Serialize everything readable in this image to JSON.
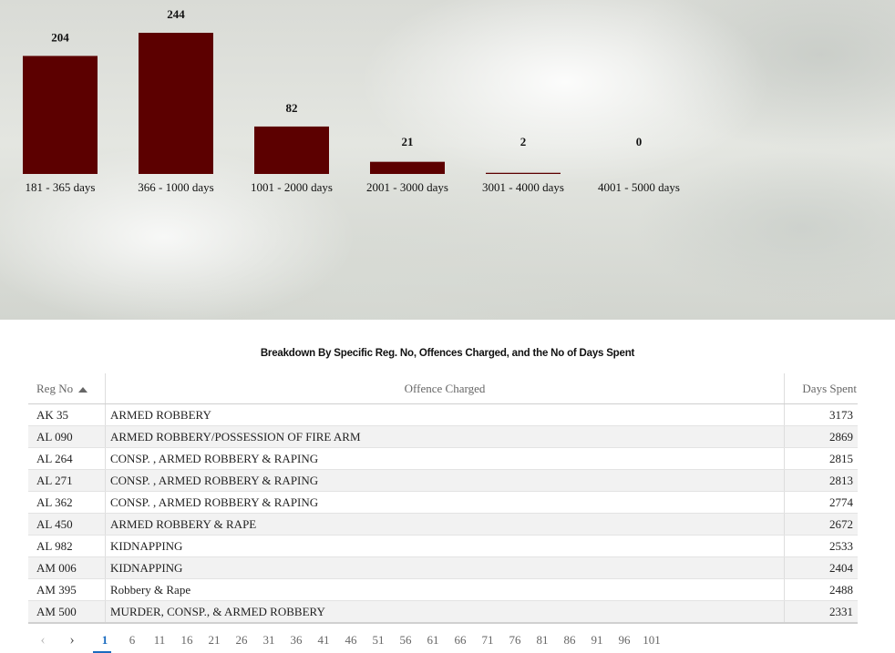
{
  "chart_data": {
    "type": "bar",
    "categories": [
      "181 - 365 days",
      "366 - 1000 days",
      "1001 - 2000 days",
      "2001 - 3000 days",
      "3001 - 4000 days",
      "4001 - 5000 days"
    ],
    "values": [
      204,
      244,
      82,
      21,
      2,
      0
    ],
    "title": "",
    "xlabel": "",
    "ylabel": "",
    "ylim": [
      0,
      244
    ],
    "grid": false,
    "bar_color": "#5c0000"
  },
  "table": {
    "title": "Breakdown By Specific Reg. No, Offences Charged, and the No of Days Spent",
    "headers": {
      "reg": "Reg No",
      "offence": "Offence Charged",
      "days": "Days Spent"
    },
    "rows": [
      {
        "reg": "AK 35",
        "offence": "ARMED ROBBERY",
        "days": "3173"
      },
      {
        "reg": "AL 090",
        "offence": "ARMED ROBBERY/POSSESSION OF FIRE ARM",
        "days": "2869"
      },
      {
        "reg": "AL 264",
        "offence": "CONSP. , ARMED ROBBERY & RAPING",
        "days": "2815"
      },
      {
        "reg": "AL 271",
        "offence": "CONSP. , ARMED ROBBERY & RAPING",
        "days": "2813"
      },
      {
        "reg": "AL 362",
        "offence": "CONSP. , ARMED ROBBERY & RAPING",
        "days": "2774"
      },
      {
        "reg": "AL 450",
        "offence": "ARMED ROBBERY & RAPE",
        "days": "2672"
      },
      {
        "reg": "AL 982",
        "offence": "KIDNAPPING",
        "days": "2533"
      },
      {
        "reg": "AM 006",
        "offence": "KIDNAPPING",
        "days": "2404"
      },
      {
        "reg": "AM 395",
        "offence": "Robbery & Rape",
        "days": "2488"
      },
      {
        "reg": "AM 500",
        "offence": "MURDER, CONSP., & ARMED ROBBERY",
        "days": "2331"
      }
    ]
  },
  "pagination": {
    "prev_icon": "chevron-left-icon",
    "next_icon": "chevron-right-icon",
    "current": "1",
    "pages": [
      "1",
      "6",
      "11",
      "16",
      "21",
      "26",
      "31",
      "36",
      "41",
      "46",
      "51",
      "56",
      "61",
      "66",
      "71",
      "76",
      "81",
      "86",
      "91",
      "96",
      "101"
    ]
  }
}
